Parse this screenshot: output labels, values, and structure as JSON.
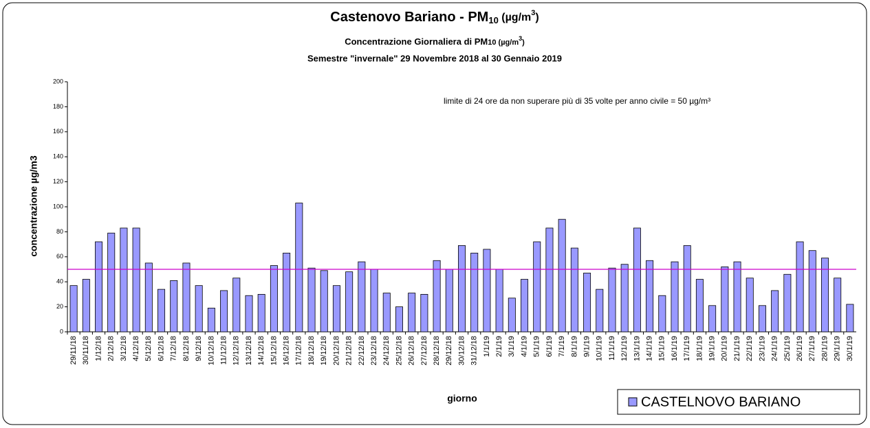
{
  "chart_data": {
    "type": "bar",
    "title": [
      "Castenovo Bariano - PM",
      "10",
      " (µg/m",
      "3",
      ")"
    ],
    "subtitle": [
      "Concentrazione Giornaliera di PM",
      "10 (µg/m",
      "3",
      ")"
    ],
    "subtitle2": "Semestre \"invernale\" 29 Novembre 2018 al 30 Gennaio 2019",
    "y_label": "concentrazione µg/m3",
    "x_label": "giorno",
    "annotation": "limite di 24 ore da non superare più di 35 volte per anno civile = 50 µg/m³",
    "threshold": 50,
    "threshold_color": "#cc00cc",
    "categories": [
      "29/11/18",
      "30/11/18",
      "1/12/18",
      "2/12/18",
      "3/12/18",
      "4/12/18",
      "5/12/18",
      "6/12/18",
      "7/12/18",
      "8/12/18",
      "9/12/18",
      "10/12/18",
      "11/12/18",
      "12/12/18",
      "13/12/18",
      "14/12/18",
      "15/12/18",
      "16/12/18",
      "17/12/18",
      "18/12/18",
      "19/12/18",
      "20/12/18",
      "21/12/18",
      "22/12/18",
      "23/12/18",
      "24/12/18",
      "25/12/18",
      "26/12/18",
      "27/12/18",
      "28/12/18",
      "29/12/18",
      "30/12/18",
      "31/12/18",
      "1/1/19",
      "2/1/19",
      "3/1/19",
      "4/1/19",
      "5/1/19",
      "6/1/19",
      "7/1/19",
      "8/1/19",
      "9/1/19",
      "10/1/19",
      "11/1/19",
      "12/1/19",
      "13/1/19",
      "14/1/19",
      "15/1/19",
      "16/1/19",
      "17/1/19",
      "18/1/19",
      "19/1/19",
      "20/1/19",
      "21/1/19",
      "22/1/19",
      "23/1/19",
      "24/1/19",
      "25/1/19",
      "26/1/19",
      "27/1/19",
      "28/1/19",
      "29/1/19",
      "30/1/19"
    ],
    "series": [
      {
        "name": "CASTELNOVO BARIANO",
        "color": "#9999ff",
        "values": [
          37,
          42,
          72,
          79,
          83,
          83,
          55,
          34,
          41,
          55,
          37,
          19,
          33,
          43,
          29,
          30,
          53,
          63,
          103,
          51,
          49,
          37,
          48,
          56,
          50,
          31,
          20,
          31,
          30,
          57,
          50,
          69,
          63,
          66,
          50,
          27,
          42,
          72,
          83,
          90,
          67,
          47,
          34,
          51,
          54,
          83,
          57,
          29,
          56,
          69,
          42,
          21,
          52,
          56,
          43,
          21,
          33,
          46,
          72,
          65,
          59,
          43,
          22
        ]
      }
    ],
    "ylim": [
      0,
      200
    ],
    "yticks": [
      0,
      20,
      40,
      60,
      80,
      100,
      120,
      140,
      160,
      180,
      200
    ],
    "legend": "bottom-right"
  }
}
